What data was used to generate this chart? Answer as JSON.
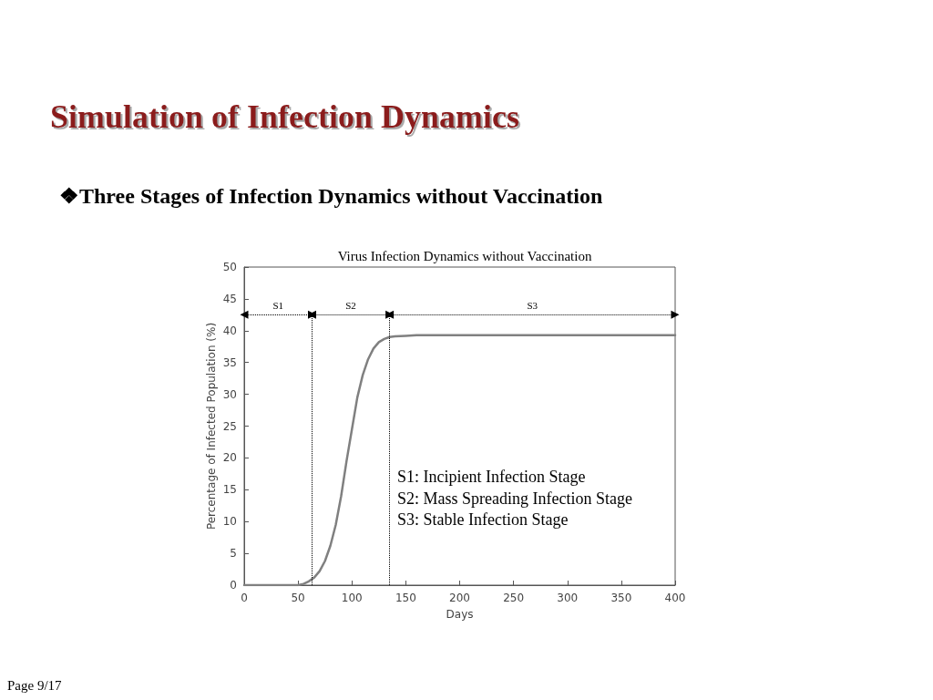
{
  "chart_data": {
    "type": "line",
    "title": "Virus Infection Dynamics without Vaccination",
    "subtitle": "Simulation of Infection Dynamics",
    "legend_title": "❖Three Stages of Infection Dynamics without Vaccination",
    "xlabel": "Days",
    "ylabel": "Percentage of Infected Population (%)",
    "x": [
      0,
      50,
      55,
      60,
      65,
      70,
      75,
      80,
      85,
      90,
      95,
      100,
      105,
      110,
      115,
      120,
      125,
      130,
      135,
      140,
      150,
      160,
      400
    ],
    "series": [
      {
        "color": "#808080",
        "values": [
          0,
          0,
          0.2,
          0.6,
          1.2,
          2.2,
          3.8,
          6.2,
          9.5,
          14,
          19.5,
          24.5,
          29.5,
          33,
          35.5,
          37.2,
          38.2,
          38.7,
          39,
          39.1,
          39.2,
          39.3,
          39.3
        ]
      }
    ],
    "xlim": [
      0,
      400
    ],
    "xticks": [
      0,
      50,
      100,
      150,
      200,
      250,
      300,
      350,
      400
    ],
    "ylim": [
      0,
      50
    ],
    "yticks": [
      0,
      5,
      10,
      15,
      20,
      25,
      30,
      35,
      40,
      45,
      50
    ],
    "ref_lines": [
      {
        "axis": "x",
        "value": 63,
        "line_style": "dotted",
        "color": "#000000"
      },
      {
        "axis": "x",
        "value": 135,
        "line_style": "dotted",
        "color": "#000000"
      }
    ],
    "annotations": [
      "S1",
      "S2",
      "S3",
      "S1: Incipient Infection Stage",
      "S2: Mass Spreading Infection Stage",
      "S3: Stable Infection Stage",
      "Page 9/17"
    ],
    "grid": false,
    "marker": "none",
    "line_style": "solid"
  }
}
